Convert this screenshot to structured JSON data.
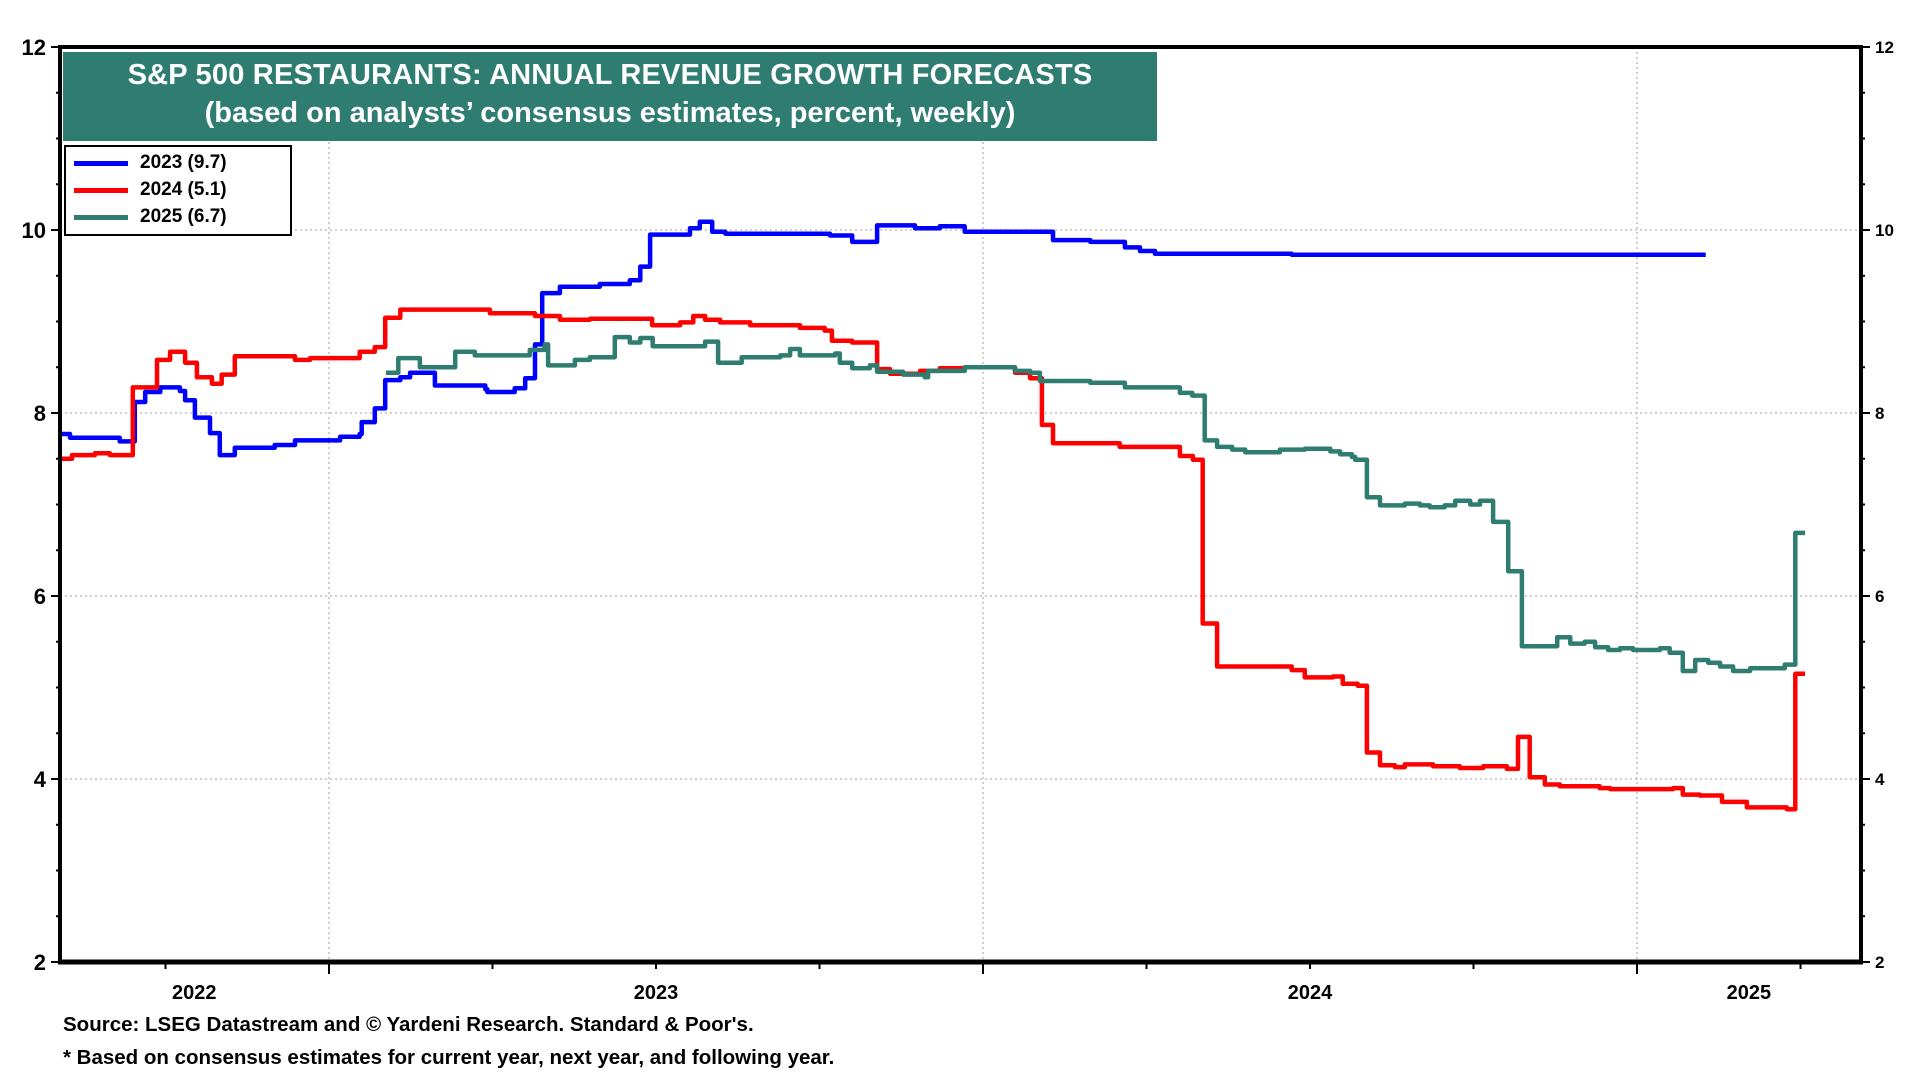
{
  "chart_data": {
    "type": "line",
    "title": "S&P 500 RESTAURANTS: ANNUAL REVENUE GROWTH FORECASTS",
    "subtitle": "(based on analysts’ consensus estimates, percent, weekly)",
    "xlabel": "",
    "ylabel": "",
    "x_unit": "decimal year",
    "xlim": [
      2022.589,
      2025.342
    ],
    "ylim": [
      2,
      12
    ],
    "y_ticks": [
      2,
      4,
      6,
      8,
      10,
      12
    ],
    "y_ticks_right": [
      2,
      4,
      6,
      8,
      10,
      12
    ],
    "x_tick_labels": [
      {
        "label": "2022",
        "x": 2022.794
      },
      {
        "label": "2023",
        "x": 2023.5
      },
      {
        "label": "2024",
        "x": 2024.5
      },
      {
        "label": "2025",
        "x": 2025.171
      }
    ],
    "x_gridlines": [
      2023.0,
      2024.0,
      2025.0
    ],
    "grid": true,
    "legend_position": "top-left",
    "step": true,
    "series": [
      {
        "name": "2023 (9.7)",
        "color": "#0000ff",
        "points": [
          [
            2022.589,
            7.77
          ],
          [
            2022.604,
            7.73
          ],
          [
            2022.68,
            7.69
          ],
          [
            2022.703,
            8.12
          ],
          [
            2022.719,
            8.23
          ],
          [
            2022.742,
            8.28
          ],
          [
            2022.772,
            8.24
          ],
          [
            2022.78,
            8.14
          ],
          [
            2022.795,
            7.95
          ],
          [
            2022.818,
            7.78
          ],
          [
            2022.833,
            7.54
          ],
          [
            2022.856,
            7.62
          ],
          [
            2022.917,
            7.65
          ],
          [
            2022.948,
            7.7
          ],
          [
            2023.017,
            7.74
          ],
          [
            2023.047,
            7.77
          ],
          [
            2023.05,
            7.9
          ],
          [
            2023.07,
            8.05
          ],
          [
            2023.086,
            8.36
          ],
          [
            2023.109,
            8.39
          ],
          [
            2023.124,
            8.44
          ],
          [
            2023.162,
            8.3
          ],
          [
            2023.239,
            8.26
          ],
          [
            2023.242,
            8.23
          ],
          [
            2023.284,
            8.27
          ],
          [
            2023.3,
            8.38
          ],
          [
            2023.315,
            8.75
          ],
          [
            2023.326,
            9.31
          ],
          [
            2023.353,
            9.38
          ],
          [
            2023.414,
            9.41
          ],
          [
            2023.46,
            9.45
          ],
          [
            2023.476,
            9.6
          ],
          [
            2023.491,
            9.95
          ],
          [
            2023.552,
            10.02
          ],
          [
            2023.567,
            10.09
          ],
          [
            2023.586,
            9.98
          ],
          [
            2023.606,
            9.96
          ],
          [
            2023.766,
            9.94
          ],
          [
            2023.8,
            9.87
          ],
          [
            2023.838,
            10.05
          ],
          [
            2023.896,
            10.02
          ],
          [
            2023.934,
            10.04
          ],
          [
            2023.972,
            9.98
          ],
          [
            2024.107,
            9.89
          ],
          [
            2024.164,
            9.87
          ],
          [
            2024.217,
            9.81
          ],
          [
            2024.24,
            9.77
          ],
          [
            2024.263,
            9.74
          ],
          [
            2024.472,
            9.73
          ],
          [
            2025.105,
            9.73
          ]
        ]
      },
      {
        "name": "2024 (5.1)",
        "color": "#ff0000",
        "points": [
          [
            2022.589,
            7.5
          ],
          [
            2022.607,
            7.54
          ],
          [
            2022.642,
            7.56
          ],
          [
            2022.665,
            7.54
          ],
          [
            2022.7,
            8.28
          ],
          [
            2022.737,
            8.58
          ],
          [
            2022.757,
            8.67
          ],
          [
            2022.78,
            8.55
          ],
          [
            2022.798,
            8.39
          ],
          [
            2022.821,
            8.32
          ],
          [
            2022.836,
            8.42
          ],
          [
            2022.856,
            8.62
          ],
          [
            2022.948,
            8.58
          ],
          [
            2022.971,
            8.6
          ],
          [
            2023.047,
            8.67
          ],
          [
            2023.07,
            8.72
          ],
          [
            2023.086,
            9.04
          ],
          [
            2023.109,
            9.13
          ],
          [
            2023.246,
            9.09
          ],
          [
            2023.315,
            9.06
          ],
          [
            2023.353,
            9.02
          ],
          [
            2023.399,
            9.03
          ],
          [
            2023.494,
            8.96
          ],
          [
            2023.537,
            8.99
          ],
          [
            2023.557,
            9.06
          ],
          [
            2023.575,
            9.02
          ],
          [
            2023.598,
            8.99
          ],
          [
            2023.644,
            8.96
          ],
          [
            2023.72,
            8.93
          ],
          [
            2023.758,
            8.9
          ],
          [
            2023.769,
            8.79
          ],
          [
            2023.8,
            8.77
          ],
          [
            2023.838,
            8.48
          ],
          [
            2023.858,
            8.43
          ],
          [
            2023.904,
            8.46
          ],
          [
            2023.934,
            8.49
          ],
          [
            2023.972,
            8.5
          ],
          [
            2024.049,
            8.44
          ],
          [
            2024.072,
            8.38
          ],
          [
            2024.09,
            7.87
          ],
          [
            2024.107,
            7.67
          ],
          [
            2024.209,
            7.63
          ],
          [
            2024.301,
            7.53
          ],
          [
            2024.321,
            7.49
          ],
          [
            2024.336,
            5.7
          ],
          [
            2024.358,
            5.23
          ],
          [
            2024.472,
            5.19
          ],
          [
            2024.492,
            5.11
          ],
          [
            2024.535,
            5.12
          ],
          [
            2024.55,
            5.04
          ],
          [
            2024.573,
            5.02
          ],
          [
            2024.587,
            4.29
          ],
          [
            2024.607,
            4.15
          ],
          [
            2024.63,
            4.13
          ],
          [
            2024.645,
            4.16
          ],
          [
            2024.688,
            4.14
          ],
          [
            2024.729,
            4.12
          ],
          [
            2024.765,
            4.14
          ],
          [
            2024.801,
            4.11
          ],
          [
            2024.818,
            4.46
          ],
          [
            2024.836,
            4.02
          ],
          [
            2024.859,
            3.94
          ],
          [
            2024.882,
            3.92
          ],
          [
            2024.943,
            3.9
          ],
          [
            2024.959,
            3.89
          ],
          [
            2025.055,
            3.9
          ],
          [
            2025.07,
            3.83
          ],
          [
            2025.096,
            3.82
          ],
          [
            2025.13,
            3.75
          ],
          [
            2025.168,
            3.69
          ],
          [
            2025.229,
            3.67
          ],
          [
            2025.242,
            5.15
          ],
          [
            2025.257,
            5.15
          ]
        ]
      },
      {
        "name": "2025 (6.7)",
        "color": "#2f7d71",
        "points": [
          [
            2023.087,
            8.44
          ],
          [
            2023.106,
            8.6
          ],
          [
            2023.139,
            8.5
          ],
          [
            2023.193,
            8.67
          ],
          [
            2023.223,
            8.63
          ],
          [
            2023.307,
            8.69
          ],
          [
            2023.33,
            8.75
          ],
          [
            2023.335,
            8.52
          ],
          [
            2023.376,
            8.58
          ],
          [
            2023.399,
            8.61
          ],
          [
            2023.437,
            8.83
          ],
          [
            2023.46,
            8.77
          ],
          [
            2023.476,
            8.82
          ],
          [
            2023.495,
            8.73
          ],
          [
            2023.575,
            8.78
          ],
          [
            2023.595,
            8.55
          ],
          [
            2023.631,
            8.61
          ],
          [
            2023.69,
            8.63
          ],
          [
            2023.705,
            8.7
          ],
          [
            2023.72,
            8.63
          ],
          [
            2023.774,
            8.65
          ],
          [
            2023.781,
            8.55
          ],
          [
            2023.8,
            8.49
          ],
          [
            2023.827,
            8.52
          ],
          [
            2023.838,
            8.45
          ],
          [
            2023.878,
            8.42
          ],
          [
            2023.911,
            8.39
          ],
          [
            2023.916,
            8.46
          ],
          [
            2023.972,
            8.5
          ],
          [
            2024.049,
            8.46
          ],
          [
            2024.072,
            8.44
          ],
          [
            2024.087,
            8.35
          ],
          [
            2024.164,
            8.33
          ],
          [
            2024.217,
            8.28
          ],
          [
            2024.301,
            8.22
          ],
          [
            2024.32,
            8.19
          ],
          [
            2024.339,
            7.7
          ],
          [
            2024.358,
            7.63
          ],
          [
            2024.381,
            7.6
          ],
          [
            2024.401,
            7.57
          ],
          [
            2024.454,
            7.6
          ],
          [
            2024.492,
            7.61
          ],
          [
            2024.531,
            7.58
          ],
          [
            2024.546,
            7.55
          ],
          [
            2024.564,
            7.52
          ],
          [
            2024.569,
            7.49
          ],
          [
            2024.587,
            7.08
          ],
          [
            2024.607,
            6.99
          ],
          [
            2024.645,
            7.01
          ],
          [
            2024.668,
            6.99
          ],
          [
            2024.683,
            6.97
          ],
          [
            2024.706,
            6.99
          ],
          [
            2024.722,
            7.04
          ],
          [
            2024.745,
            7.0
          ],
          [
            2024.76,
            7.04
          ],
          [
            2024.78,
            6.81
          ],
          [
            2024.803,
            6.27
          ],
          [
            2024.824,
            5.45
          ],
          [
            2024.878,
            5.55
          ],
          [
            2024.898,
            5.48
          ],
          [
            2024.92,
            5.5
          ],
          [
            2024.936,
            5.44
          ],
          [
            2024.956,
            5.41
          ],
          [
            2024.974,
            5.43
          ],
          [
            2024.994,
            5.41
          ],
          [
            2025.035,
            5.43
          ],
          [
            2025.05,
            5.38
          ],
          [
            2025.07,
            5.18
          ],
          [
            2025.089,
            5.3
          ],
          [
            2025.109,
            5.27
          ],
          [
            2025.127,
            5.23
          ],
          [
            2025.147,
            5.18
          ],
          [
            2025.173,
            5.21
          ],
          [
            2025.226,
            5.25
          ],
          [
            2025.242,
            6.69
          ],
          [
            2025.257,
            6.69
          ]
        ]
      }
    ],
    "footnotes": [
      "Source: LSEG Datastream and © Yardeni Research. Standard & Poor's.",
      "* Based on consensus estimates for current year, next year, and following year."
    ]
  },
  "header": {
    "title": "S&P 500 RESTAURANTS: ANNUAL REVENUE GROWTH FORECASTS",
    "subtitle": "(based on analysts’ consensus estimates, percent, weekly)",
    "background_color": "#2f7d71"
  },
  "legend": {
    "items": [
      {
        "label": "2023 (9.7)",
        "color": "#0000ff"
      },
      {
        "label": "2024 (5.1)",
        "color": "#ff0000"
      },
      {
        "label": "2025 (6.7)",
        "color": "#2f7d71"
      }
    ]
  },
  "footer": {
    "source": "Source: LSEG Datastream and © Yardeni Research. Standard & Poor's.",
    "note": "* Based on consensus estimates for current year, next year, and following year."
  }
}
